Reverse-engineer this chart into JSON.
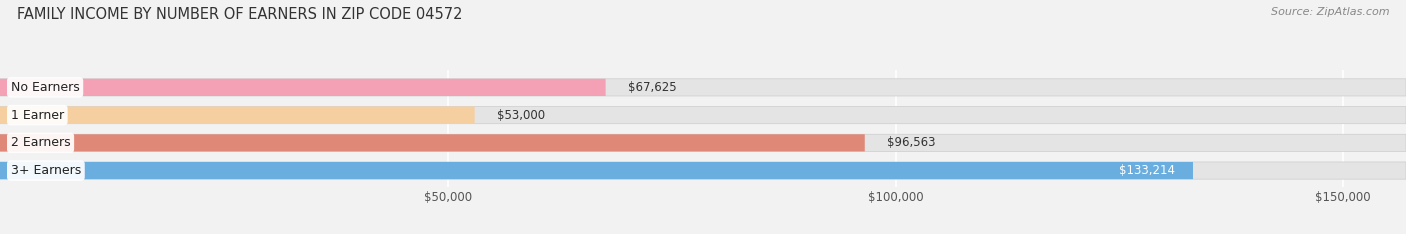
{
  "title": "FAMILY INCOME BY NUMBER OF EARNERS IN ZIP CODE 04572",
  "source": "Source: ZipAtlas.com",
  "categories": [
    "No Earners",
    "1 Earner",
    "2 Earners",
    "3+ Earners"
  ],
  "values": [
    67625,
    53000,
    96563,
    133214
  ],
  "bar_colors": [
    "#f4a0b5",
    "#f5cfa0",
    "#e08878",
    "#6aaee0"
  ],
  "value_labels": [
    "$67,625",
    "$53,000",
    "$96,563",
    "$133,214"
  ],
  "value_inside": [
    false,
    false,
    false,
    true
  ],
  "xlim": [
    0,
    157000
  ],
  "xticks": [
    50000,
    100000,
    150000
  ],
  "xtick_labels": [
    "$50,000",
    "$100,000",
    "$150,000"
  ],
  "background_color": "#f2f2f2",
  "bar_bg_color": "#e4e4e4",
  "bar_height": 0.62,
  "title_fontsize": 10.5,
  "label_fontsize": 9,
  "value_fontsize": 8.5,
  "tick_fontsize": 8.5,
  "source_fontsize": 8
}
